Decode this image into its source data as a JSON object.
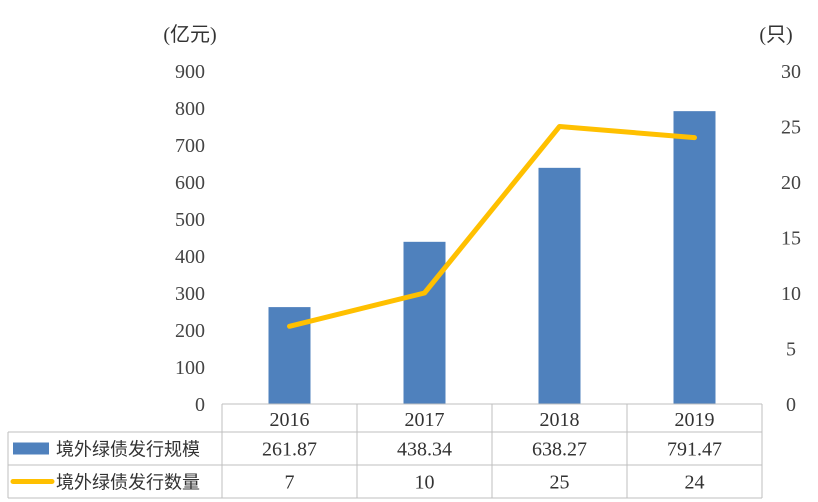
{
  "chart_data": {
    "type": "bar",
    "categories": [
      "2016",
      "2017",
      "2018",
      "2019"
    ],
    "y_left_unit": "(亿元)",
    "y_right_unit": "(只)",
    "y_left_ticks": [
      "900",
      "800",
      "700",
      "600",
      "500",
      "400",
      "300",
      "200",
      "100",
      "0"
    ],
    "y_right_ticks": [
      "30",
      "25",
      "20",
      "15",
      "10",
      "5",
      "0"
    ],
    "ylim_left": [
      0,
      900
    ],
    "ylim_right": [
      0,
      30
    ],
    "grid": false,
    "legend": "data-table",
    "series": [
      {
        "name": "境外绿债发行规模",
        "type": "bar",
        "axis": "left",
        "color": "#4f81bd",
        "values": [
          261.87,
          438.34,
          638.27,
          791.47
        ],
        "labels": [
          "261.87",
          "438.34",
          "638.27",
          "791.47"
        ]
      },
      {
        "name": "境外绿债发行数量",
        "type": "line",
        "axis": "right",
        "color": "#ffc000",
        "values": [
          7,
          10,
          25,
          24
        ],
        "labels": [
          "7",
          "10",
          "25",
          "24"
        ]
      }
    ]
  }
}
